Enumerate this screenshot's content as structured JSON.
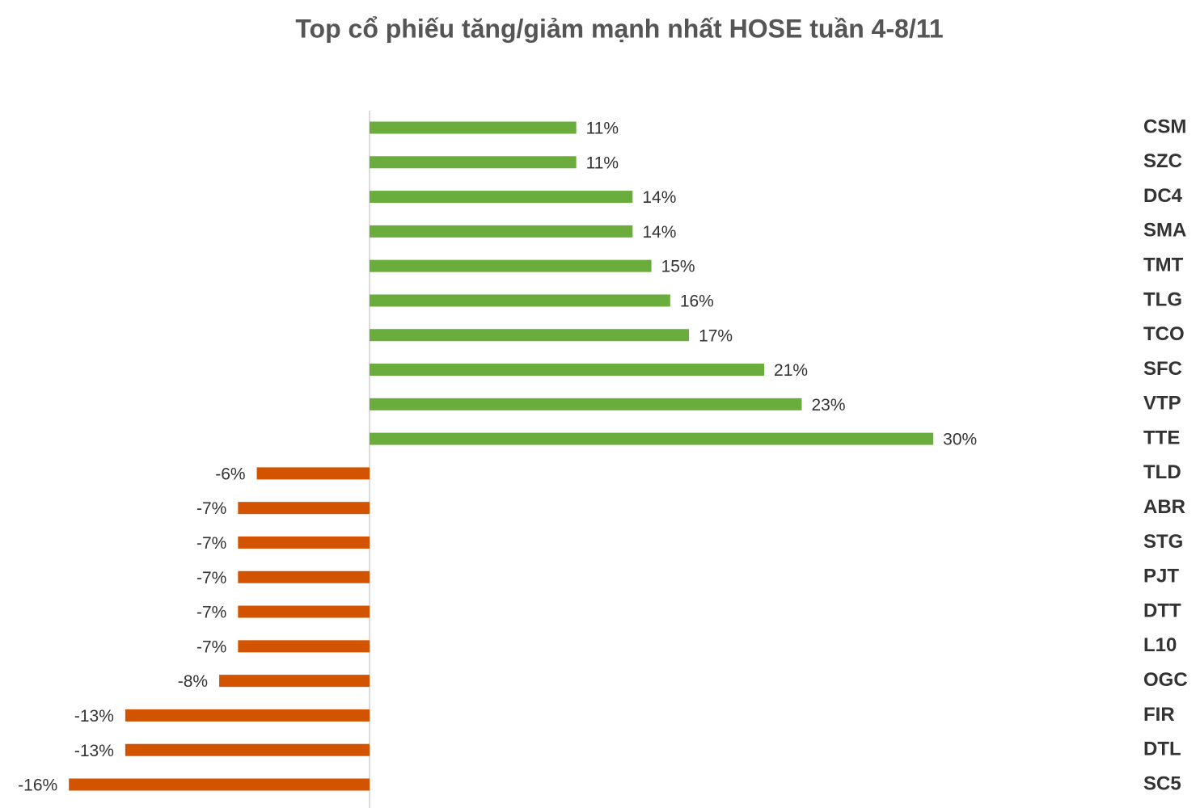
{
  "chart_data": {
    "type": "bar",
    "orientation": "horizontal",
    "title": "Top cổ phiếu tăng/giảm mạnh nhất HOSE tuần 4-8/11",
    "categories": [
      "CSM",
      "SZC",
      "DC4",
      "SMA",
      "TMT",
      "TLG",
      "TCO",
      "SFC",
      "VTP",
      "TTE",
      "TLD",
      "ABR",
      "STG",
      "PJT",
      "DTT",
      "L10",
      "OGC",
      "FIR",
      "DTL",
      "SC5"
    ],
    "values": [
      11,
      11,
      14,
      14,
      15,
      16,
      17,
      21,
      23,
      30,
      -6,
      -7,
      -7,
      -7,
      -7,
      -7,
      -8,
      -13,
      -13,
      -16
    ],
    "value_labels": [
      "11%",
      "11%",
      "14%",
      "14%",
      "15%",
      "16%",
      "17%",
      "21%",
      "23%",
      "30%",
      "-6%",
      "-7%",
      "-7%",
      "-7%",
      "-7%",
      "-7%",
      "-8%",
      "-13%",
      "-13%",
      "-16%"
    ],
    "colors": [
      "#6aad3d",
      "#6aad3d",
      "#6aad3d",
      "#6aad3d",
      "#6aad3d",
      "#6aad3d",
      "#6aad3d",
      "#6aad3d",
      "#6aad3d",
      "#6aad3d",
      "#d35400",
      "#d35400",
      "#d35400",
      "#d35400",
      "#d35400",
      "#d35400",
      "#d35400",
      "#d35400",
      "#d35400",
      "#d35400"
    ]
  }
}
